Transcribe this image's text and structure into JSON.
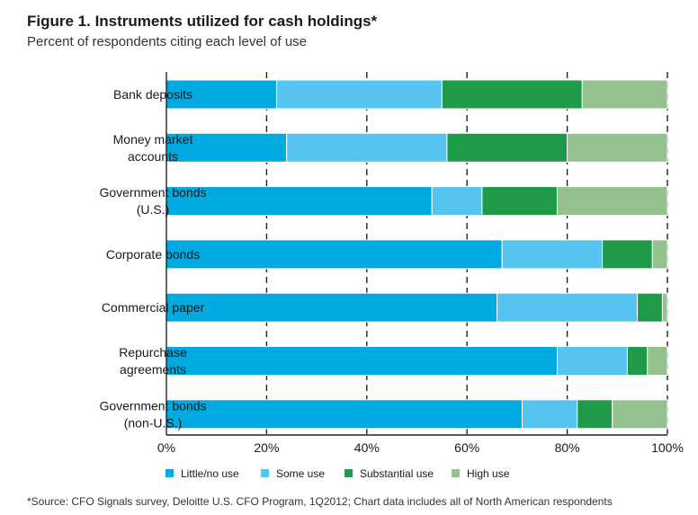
{
  "title": "Figure 1. Instruments utilized for cash holdings*",
  "subtitle": "Percent of respondents citing each level of use",
  "footnote": "*Source: CFO Signals survey, Deloitte U.S. CFO Program, 1Q2012; Chart data includes all of North American respondents",
  "chart_data": {
    "type": "bar",
    "orientation": "horizontal",
    "stacked": true,
    "categories": [
      [
        "Bank deposits"
      ],
      [
        "Money market",
        "accounts"
      ],
      [
        "Government bonds",
        "(U.S.)"
      ],
      [
        "Corporate bonds"
      ],
      [
        "Commercial paper"
      ],
      [
        "Repurchase",
        "agreements"
      ],
      [
        "Government bonds",
        "(non-U.S.)"
      ]
    ],
    "series": [
      {
        "name": "Little/no use",
        "color": "#00a9e0",
        "values": [
          22,
          24,
          53,
          67,
          66,
          78,
          71
        ]
      },
      {
        "name": "Some use",
        "color": "#55c4ee",
        "values": [
          33,
          32,
          10,
          20,
          28,
          14,
          11
        ]
      },
      {
        "name": "Substantial use",
        "color": "#1f9a48",
        "values": [
          28,
          24,
          15,
          10,
          5,
          4,
          7
        ]
      },
      {
        "name": "High use",
        "color": "#94c28e",
        "values": [
          17,
          20,
          22,
          3,
          1,
          4,
          11
        ]
      }
    ],
    "x_ticks": [
      "0%",
      "20%",
      "40%",
      "60%",
      "80%",
      "100%"
    ],
    "xlim": [
      0,
      100
    ],
    "legend_position": "bottom",
    "grid": "vertical-dashed"
  }
}
